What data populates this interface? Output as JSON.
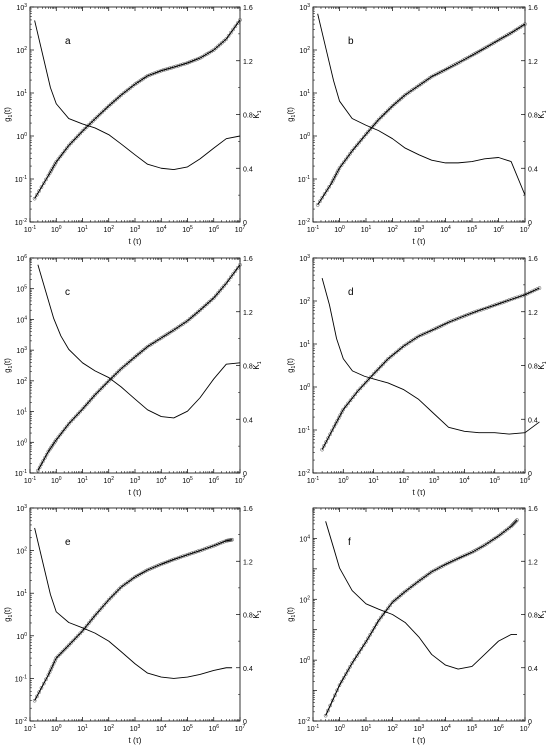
{
  "figure": {
    "panel_labels": [
      "a",
      "b",
      "c",
      "d",
      "e",
      "f"
    ]
  },
  "chart_data": [
    {
      "panel": "a",
      "type": "line",
      "xscale": "log",
      "yscale": "log",
      "xlabel": "t (τ)",
      "ylabel": "g1(t)",
      "y2label": "K1",
      "xlim": [
        0.1,
        10000000
      ],
      "ylim": [
        0.01,
        1000
      ],
      "y2lim": [
        0,
        1.6
      ],
      "xticks": [
        0.1,
        1,
        10,
        100,
        1000,
        10000,
        100000,
        1000000,
        10000000
      ],
      "yticks": [
        0.01,
        0.1,
        1,
        10,
        100,
        1000
      ],
      "y2ticks": [
        0,
        0.4,
        0.8,
        1.2,
        1.6
      ],
      "series": [
        {
          "axis": "left",
          "style": "circles-and-line",
          "x": [
            0.15,
            0.5,
            1,
            3,
            10,
            30,
            100,
            300,
            1000,
            3000,
            10000,
            30000,
            100000,
            300000,
            1000000,
            3000000,
            10000000
          ],
          "y": [
            0.035,
            0.12,
            0.25,
            0.6,
            1.3,
            2.5,
            5,
            9,
            16,
            25,
            33,
            40,
            50,
            65,
            100,
            180,
            500
          ]
        },
        {
          "axis": "right",
          "style": "line",
          "x": [
            0.15,
            0.3,
            0.6,
            1,
            3,
            10,
            30,
            100,
            300,
            1000,
            3000,
            10000,
            30000,
            100000,
            300000,
            1000000,
            3000000,
            10000000
          ],
          "y": [
            1.5,
            1.25,
            1.0,
            0.88,
            0.77,
            0.73,
            0.7,
            0.65,
            0.58,
            0.5,
            0.43,
            0.4,
            0.39,
            0.41,
            0.47,
            0.55,
            0.62,
            0.64
          ]
        }
      ]
    },
    {
      "panel": "b",
      "type": "line",
      "xscale": "log",
      "yscale": "log",
      "xlabel": "t (τ)",
      "ylabel": "g1(t)",
      "y2label": "K1",
      "xlim": [
        0.1,
        10000000
      ],
      "ylim": [
        0.01,
        1000
      ],
      "y2lim": [
        0,
        1.6
      ],
      "xticks": [
        0.1,
        1,
        10,
        100,
        1000,
        10000,
        100000,
        1000000,
        10000000
      ],
      "yticks": [
        0.01,
        0.1,
        1,
        10,
        100,
        1000
      ],
      "y2ticks": [
        0,
        0.4,
        0.8,
        1.2,
        1.6
      ],
      "series": [
        {
          "axis": "left",
          "style": "circles-and-line",
          "x": [
            0.15,
            0.5,
            1,
            3,
            10,
            30,
            100,
            300,
            1000,
            3000,
            10000,
            30000,
            100000,
            300000,
            1000000,
            3000000,
            10000000
          ],
          "y": [
            0.025,
            0.08,
            0.18,
            0.45,
            1.1,
            2.4,
            5,
            9,
            15,
            24,
            35,
            50,
            75,
            110,
            170,
            250,
            400
          ]
        },
        {
          "axis": "right",
          "style": "line",
          "x": [
            0.15,
            0.3,
            0.6,
            1,
            3,
            10,
            30,
            100,
            300,
            1000,
            3000,
            10000,
            30000,
            100000,
            300000,
            1000000,
            3000000,
            10000000
          ],
          "y": [
            1.55,
            1.3,
            1.05,
            0.9,
            0.77,
            0.72,
            0.68,
            0.62,
            0.55,
            0.5,
            0.46,
            0.44,
            0.44,
            0.45,
            0.47,
            0.48,
            0.45,
            0.2
          ]
        }
      ]
    },
    {
      "panel": "c",
      "type": "line",
      "xscale": "log",
      "yscale": "log",
      "xlabel": "t (τ)",
      "ylabel": "g1(t)",
      "y2label": "K1",
      "xlim": [
        0.1,
        10000000
      ],
      "ylim": [
        0.1,
        1000000
      ],
      "y2lim": [
        0,
        1.6
      ],
      "xticks": [
        0.1,
        1,
        10,
        100,
        1000,
        10000,
        100000,
        1000000,
        10000000
      ],
      "yticks": [
        0.1,
        1,
        10,
        100,
        1000,
        10000,
        100000,
        1000000
      ],
      "y2ticks": [
        0,
        0.4,
        0.8,
        1.2,
        1.6
      ],
      "series": [
        {
          "axis": "left",
          "style": "circles-and-line",
          "x": [
            0.2,
            0.5,
            1,
            3,
            10,
            30,
            100,
            300,
            1000,
            3000,
            10000,
            30000,
            100000,
            300000,
            1000000,
            3000000,
            10000000
          ],
          "y": [
            0.12,
            0.5,
            1.2,
            4,
            12,
            35,
            100,
            250,
            600,
            1300,
            2500,
            4500,
            9000,
            20000,
            50000,
            150000,
            600000
          ]
        },
        {
          "axis": "right",
          "style": "line",
          "x": [
            0.2,
            0.4,
            0.8,
            1.5,
            3,
            10,
            30,
            100,
            300,
            1000,
            3000,
            10000,
            30000,
            100000,
            300000,
            1000000,
            3000000,
            10000000
          ],
          "y": [
            1.55,
            1.35,
            1.15,
            1.02,
            0.92,
            0.82,
            0.76,
            0.71,
            0.64,
            0.55,
            0.47,
            0.42,
            0.41,
            0.46,
            0.56,
            0.7,
            0.81,
            0.82
          ]
        }
      ]
    },
    {
      "panel": "d",
      "type": "line",
      "xscale": "log",
      "yscale": "log",
      "xlabel": "t (τ)",
      "ylabel": "g1(t)",
      "y2label": "K1",
      "xlim": [
        0.1,
        1000000
      ],
      "ylim": [
        0.01,
        1000
      ],
      "y2lim": [
        0,
        1.6
      ],
      "xticks": [
        0.1,
        1,
        10,
        100,
        1000,
        10000,
        100000,
        1000000
      ],
      "yticks": [
        0.01,
        0.1,
        1,
        10,
        100,
        1000
      ],
      "y2ticks": [
        0,
        0.4,
        0.8,
        1.2,
        1.6
      ],
      "series": [
        {
          "axis": "left",
          "style": "circles-and-line",
          "x": [
            0.2,
            0.5,
            1,
            3,
            10,
            30,
            100,
            300,
            1000,
            3000,
            10000,
            30000,
            100000,
            300000,
            1000000,
            3000000
          ],
          "y": [
            0.035,
            0.12,
            0.3,
            0.8,
            2,
            4.5,
            9,
            15,
            22,
            32,
            45,
            60,
            80,
            105,
            140,
            200
          ]
        },
        {
          "axis": "right",
          "style": "line",
          "x": [
            0.2,
            0.35,
            0.6,
            1,
            2,
            5,
            10,
            30,
            100,
            300,
            1000,
            3000,
            10000,
            30000,
            100000,
            300000,
            1000000,
            3000000
          ],
          "y": [
            1.45,
            1.25,
            1.0,
            0.85,
            0.76,
            0.72,
            0.7,
            0.67,
            0.62,
            0.55,
            0.44,
            0.34,
            0.31,
            0.3,
            0.3,
            0.29,
            0.3,
            0.38
          ]
        }
      ]
    },
    {
      "panel": "e",
      "type": "line",
      "xscale": "log",
      "yscale": "log",
      "xlabel": "t (τ)",
      "ylabel": "g1(t)",
      "y2label": "K1",
      "xlim": [
        0.1,
        10000000
      ],
      "ylim": [
        0.01,
        1000
      ],
      "y2lim": [
        0,
        1.6
      ],
      "xticks": [
        0.1,
        1,
        10,
        100,
        1000,
        10000,
        100000,
        1000000,
        10000000
      ],
      "yticks": [
        0.01,
        0.1,
        1,
        10,
        100,
        1000
      ],
      "y2ticks": [
        0,
        0.4,
        0.8,
        1.2,
        1.6
      ],
      "series": [
        {
          "axis": "left",
          "style": "circles-and-line",
          "x": [
            0.15,
            0.5,
            1,
            3,
            10,
            30,
            100,
            300,
            1000,
            3000,
            10000,
            30000,
            100000,
            300000,
            1000000,
            3000000,
            5000000
          ],
          "y": [
            0.03,
            0.12,
            0.3,
            0.6,
            1.3,
            3,
            7,
            14,
            24,
            35,
            48,
            62,
            80,
            100,
            130,
            170,
            180
          ]
        },
        {
          "axis": "right",
          "style": "line",
          "x": [
            0.15,
            0.3,
            0.6,
            1,
            3,
            10,
            30,
            100,
            300,
            1000,
            3000,
            10000,
            30000,
            100000,
            300000,
            1000000,
            3000000,
            5000000
          ],
          "y": [
            1.45,
            1.2,
            0.95,
            0.82,
            0.74,
            0.7,
            0.66,
            0.6,
            0.52,
            0.43,
            0.36,
            0.33,
            0.32,
            0.33,
            0.35,
            0.38,
            0.4,
            0.4
          ]
        }
      ]
    },
    {
      "panel": "f",
      "type": "line",
      "xscale": "log",
      "yscale": "log",
      "xlabel": "t (τ)",
      "ylabel": "g1(t)",
      "y2label": "K1",
      "xlim": [
        0.1,
        10000000
      ],
      "ylim": [
        0.01,
        100000
      ],
      "y2lim": [
        0,
        1.6
      ],
      "xticks": [
        0.1,
        1,
        10,
        100,
        1000,
        10000,
        100000,
        1000000,
        10000000
      ],
      "yticks": [
        0.01,
        1,
        100,
        10000
      ],
      "y2ticks": [
        0,
        0.4,
        0.8,
        1.2,
        1.6
      ],
      "series": [
        {
          "axis": "left",
          "style": "circles-and-line",
          "x": [
            0.3,
            1,
            3,
            10,
            30,
            100,
            300,
            1000,
            3000,
            10000,
            30000,
            100000,
            300000,
            1000000,
            3000000,
            5000000
          ],
          "y": [
            0.015,
            0.15,
            0.8,
            4,
            20,
            80,
            180,
            400,
            800,
            1400,
            2200,
            3500,
            6000,
            12000,
            25000,
            40000
          ]
        },
        {
          "axis": "right",
          "style": "line",
          "x": [
            0.3,
            0.6,
            1,
            3,
            10,
            30,
            100,
            300,
            1000,
            3000,
            10000,
            30000,
            100000,
            300000,
            1000000,
            3000000,
            5000000
          ],
          "y": [
            1.5,
            1.3,
            1.15,
            0.98,
            0.88,
            0.84,
            0.8,
            0.74,
            0.63,
            0.5,
            0.42,
            0.39,
            0.41,
            0.5,
            0.6,
            0.65,
            0.65
          ]
        }
      ]
    }
  ]
}
